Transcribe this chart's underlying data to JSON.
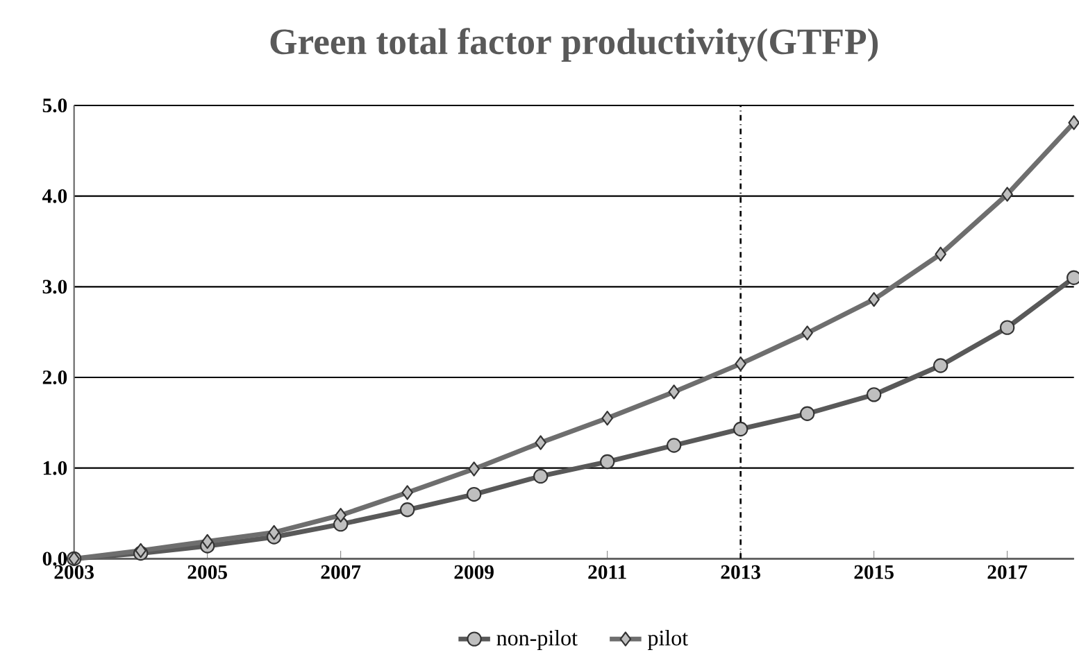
{
  "chart_data": {
    "type": "line",
    "title": "Green total factor productivity(GTFP)",
    "x": [
      2003,
      2004,
      2005,
      2006,
      2007,
      2008,
      2009,
      2010,
      2011,
      2012,
      2013,
      2014,
      2015,
      2016,
      2017,
      2018
    ],
    "series": [
      {
        "name": "non-pilot",
        "color": "#595959",
        "marker": "circle",
        "values": [
          0,
          0.06,
          0.14,
          0.24,
          0.38,
          0.54,
          0.71,
          0.91,
          1.07,
          1.25,
          1.43,
          1.6,
          1.81,
          2.13,
          2.55,
          3.1
        ]
      },
      {
        "name": "pilot",
        "color": "#6e6e6e",
        "marker": "diamond",
        "values": [
          0,
          0.09,
          0.19,
          0.29,
          0.48,
          0.73,
          0.99,
          1.28,
          1.55,
          1.84,
          2.15,
          2.49,
          2.86,
          3.36,
          4.02,
          4.81
        ]
      }
    ],
    "xlim": [
      2003,
      2018
    ],
    "xticks": [
      2003,
      2005,
      2007,
      2009,
      2011,
      2013,
      2015,
      2017
    ],
    "ylim": [
      0,
      5
    ],
    "yticks": [
      {
        "value": 0,
        "label": "0.0"
      },
      {
        "value": 1,
        "label": "1.0"
      },
      {
        "value": 2,
        "label": "2.0"
      },
      {
        "value": 3,
        "label": "3.0"
      },
      {
        "value": 4,
        "label": "4.0"
      },
      {
        "value": 5,
        "label": "5.0"
      }
    ],
    "ref_lines": [
      {
        "axis": "x",
        "value": 2013,
        "line_style": "dashdotted",
        "color": "#000000"
      }
    ],
    "grid": "y",
    "legend": "bottom",
    "line_style": "solid"
  }
}
